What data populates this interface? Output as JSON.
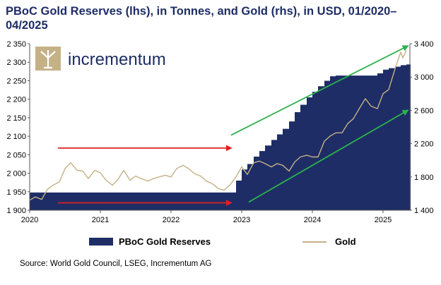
{
  "chart_data": {
    "type": "area+line",
    "title": "PBoC Gold Reserves (lhs), in Tonnes, and Gold (rhs), in USD, 01/2020–04/2025",
    "source": "Source: World Gold Council, LSEG, Incrementum AG",
    "brand": "incrementum",
    "x_range": [
      "2020-01",
      "2025-05"
    ],
    "x_ticks": [
      {
        "label": "2020",
        "t": 2020.0
      },
      {
        "label": "2021",
        "t": 2021.0
      },
      {
        "label": "2022",
        "t": 2022.0
      },
      {
        "label": "2023",
        "t": 2023.0
      },
      {
        "label": "2024",
        "t": 2024.0
      },
      {
        "label": "2025",
        "t": 2025.0
      }
    ],
    "y_left": {
      "min": 1900,
      "max": 2350,
      "ticks": [
        1900,
        1950,
        2000,
        2050,
        2100,
        2150,
        2200,
        2250,
        2300,
        2350
      ],
      "tick_labels": [
        "1 900",
        "1 950",
        "2 000",
        "2 050",
        "2 100",
        "2 150",
        "2 200",
        "2 250",
        "2 300",
        "2 350"
      ]
    },
    "y_right": {
      "min": 1400,
      "max": 3400,
      "ticks": [
        1400,
        1800,
        2200,
        2600,
        3000,
        3400
      ],
      "tick_labels": [
        "1 400",
        "1 800",
        "2 200",
        "2 600",
        "3 000",
        "3 400"
      ]
    },
    "series": [
      {
        "name": "PBoC Gold Reserves",
        "axis": "left",
        "kind": "step-area",
        "color": "#1e2d66",
        "points": [
          [
            2020.0,
            1948
          ],
          [
            2022.83,
            1948
          ],
          [
            2022.92,
            1980
          ],
          [
            2023.0,
            2010
          ],
          [
            2023.08,
            2025
          ],
          [
            2023.17,
            2045
          ],
          [
            2023.25,
            2060
          ],
          [
            2023.33,
            2075
          ],
          [
            2023.42,
            2090
          ],
          [
            2023.5,
            2105
          ],
          [
            2023.58,
            2120
          ],
          [
            2023.67,
            2140
          ],
          [
            2023.75,
            2165
          ],
          [
            2023.83,
            2185
          ],
          [
            2023.92,
            2205
          ],
          [
            2024.0,
            2220
          ],
          [
            2024.08,
            2235
          ],
          [
            2024.17,
            2250
          ],
          [
            2024.25,
            2262
          ],
          [
            2024.33,
            2264
          ],
          [
            2024.83,
            2264
          ],
          [
            2024.92,
            2270
          ],
          [
            2025.0,
            2280
          ],
          [
            2025.08,
            2284
          ],
          [
            2025.17,
            2288
          ],
          [
            2025.25,
            2292
          ],
          [
            2025.33,
            2294
          ]
        ]
      },
      {
        "name": "Gold",
        "axis": "right",
        "kind": "line",
        "color": "#c4b186",
        "points": [
          [
            2020.0,
            1520
          ],
          [
            2020.08,
            1560
          ],
          [
            2020.17,
            1530
          ],
          [
            2020.25,
            1650
          ],
          [
            2020.33,
            1700
          ],
          [
            2020.42,
            1740
          ],
          [
            2020.5,
            1900
          ],
          [
            2020.58,
            1970
          ],
          [
            2020.67,
            1880
          ],
          [
            2020.75,
            1870
          ],
          [
            2020.83,
            1780
          ],
          [
            2020.92,
            1880
          ],
          [
            2021.0,
            1850
          ],
          [
            2021.08,
            1760
          ],
          [
            2021.17,
            1700
          ],
          [
            2021.25,
            1770
          ],
          [
            2021.33,
            1880
          ],
          [
            2021.42,
            1760
          ],
          [
            2021.5,
            1810
          ],
          [
            2021.58,
            1780
          ],
          [
            2021.67,
            1750
          ],
          [
            2021.75,
            1780
          ],
          [
            2021.83,
            1800
          ],
          [
            2021.92,
            1820
          ],
          [
            2022.0,
            1800
          ],
          [
            2022.08,
            1900
          ],
          [
            2022.17,
            1940
          ],
          [
            2022.25,
            1900
          ],
          [
            2022.33,
            1840
          ],
          [
            2022.42,
            1810
          ],
          [
            2022.5,
            1750
          ],
          [
            2022.58,
            1720
          ],
          [
            2022.67,
            1660
          ],
          [
            2022.75,
            1640
          ],
          [
            2022.83,
            1700
          ],
          [
            2022.92,
            1800
          ],
          [
            2023.0,
            1920
          ],
          [
            2023.08,
            1830
          ],
          [
            2023.17,
            1970
          ],
          [
            2023.25,
            1990
          ],
          [
            2023.33,
            1960
          ],
          [
            2023.42,
            1920
          ],
          [
            2023.5,
            1960
          ],
          [
            2023.58,
            1940
          ],
          [
            2023.67,
            1870
          ],
          [
            2023.75,
            1980
          ],
          [
            2023.83,
            2040
          ],
          [
            2023.92,
            2060
          ],
          [
            2024.0,
            2040
          ],
          [
            2024.08,
            2040
          ],
          [
            2024.17,
            2230
          ],
          [
            2024.25,
            2290
          ],
          [
            2024.33,
            2330
          ],
          [
            2024.42,
            2330
          ],
          [
            2024.5,
            2440
          ],
          [
            2024.58,
            2500
          ],
          [
            2024.67,
            2630
          ],
          [
            2024.75,
            2740
          ],
          [
            2024.83,
            2650
          ],
          [
            2024.92,
            2620
          ],
          [
            2025.0,
            2800
          ],
          [
            2025.08,
            2850
          ],
          [
            2025.17,
            3100
          ],
          [
            2025.25,
            3300
          ],
          [
            2025.28,
            3230
          ],
          [
            2025.33,
            3320
          ]
        ]
      }
    ],
    "annotations": [
      {
        "kind": "arrow",
        "color": "#e02020",
        "axis": "left",
        "from": [
          2020.4,
          2068
        ],
        "to": [
          2022.85,
          2068
        ]
      },
      {
        "kind": "arrow",
        "color": "#e02020",
        "axis": "left",
        "from": [
          2020.4,
          1920
        ],
        "to": [
          2022.85,
          1920
        ]
      },
      {
        "kind": "arrow",
        "color": "#2bb24c",
        "axis": "left",
        "from": [
          2022.85,
          2103
        ],
        "to": [
          2025.35,
          2344
        ]
      },
      {
        "kind": "arrow",
        "color": "#2bb24c",
        "axis": "left",
        "from": [
          2023.1,
          1922
        ],
        "to": [
          2025.35,
          2170
        ]
      }
    ],
    "legend": {
      "placement": "bottom",
      "items": [
        "PBoC Gold Reserves",
        "Gold"
      ]
    }
  }
}
